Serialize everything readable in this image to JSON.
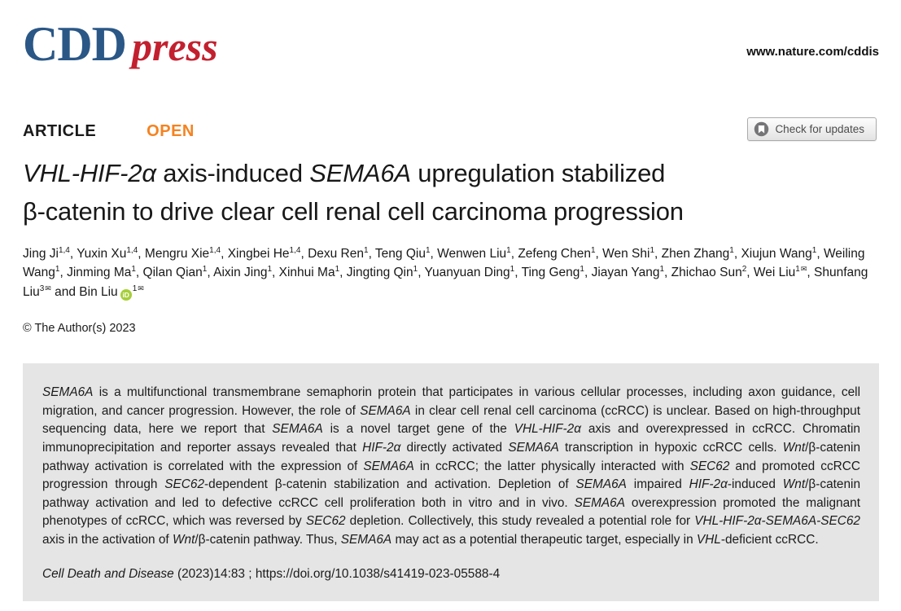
{
  "header": {
    "logo_cdd": "CDD",
    "logo_press": "press",
    "site_url": "www.nature.com/cddis"
  },
  "article": {
    "type_label": "ARTICLE",
    "open_label": "OPEN",
    "check_updates_label": "Check for updates",
    "title_line1": "*VHL-HIF-2α* axis-induced *SEMA6A* upregulation stabilized",
    "title_line2": "β-catenin to drive clear cell renal cell carcinoma progression",
    "copyright": "© The Author(s) 2023"
  },
  "authors": [
    {
      "name": "Jing Ji",
      "sup": "1,4",
      "sep": ", "
    },
    {
      "name": "Yuxin Xu",
      "sup": "1,4",
      "sep": ", "
    },
    {
      "name": "Mengru Xie",
      "sup": "1,4",
      "sep": ", "
    },
    {
      "name": "Xingbei He",
      "sup": "1,4",
      "sep": ", "
    },
    {
      "name": "Dexu Ren",
      "sup": "1",
      "sep": ", "
    },
    {
      "name": "Teng Qiu",
      "sup": "1",
      "sep": ", "
    },
    {
      "name": "Wenwen Liu",
      "sup": "1",
      "sep": ", "
    },
    {
      "name": "Zefeng Chen",
      "sup": "1",
      "sep": ", "
    },
    {
      "name": "Wen Shi",
      "sup": "1",
      "sep": ", "
    },
    {
      "name": "Zhen Zhang",
      "sup": "1",
      "sep": ", "
    },
    {
      "name": "Xiujun Wang",
      "sup": "1",
      "sep": ", "
    },
    {
      "name": "Weiling Wang",
      "sup": "1",
      "sep": ", "
    },
    {
      "name": "Jinming Ma",
      "sup": "1",
      "sep": ", "
    },
    {
      "name": "Qilan Qian",
      "sup": "1",
      "sep": ", "
    },
    {
      "name": "Aixin Jing",
      "sup": "1",
      "sep": ", "
    },
    {
      "name": "Xinhui Ma",
      "sup": "1",
      "sep": ", "
    },
    {
      "name": "Jingting Qin",
      "sup": "1",
      "sep": ", "
    },
    {
      "name": "Yuanyuan Ding",
      "sup": "1",
      "sep": ", "
    },
    {
      "name": "Ting Geng",
      "sup": "1",
      "sep": ", "
    },
    {
      "name": "Jiayan Yang",
      "sup": "1",
      "sep": ", "
    },
    {
      "name": "Zhichao Sun",
      "sup": "2",
      "sep": ", "
    },
    {
      "name": "Wei Liu",
      "sup": "1",
      "mail": true,
      "sep": ", "
    },
    {
      "name": "Shunfang Liu",
      "sup": "3",
      "mail": true,
      "sep": " and "
    },
    {
      "name": "Bin Liu",
      "sup": "1",
      "mail": true,
      "orcid": true,
      "orcid_label": "iD",
      "sep": ""
    }
  ],
  "abstract": {
    "text": "*SEMA6A* is a multifunctional transmembrane semaphorin protein that participates in various cellular processes, including axon guidance, cell migration, and cancer progression. However, the role of *SEMA6A* in clear cell renal cell carcinoma (ccRCC) is unclear. Based on high-throughput sequencing data, here we report that *SEMA6A* is a novel target gene of the *VHL-HIF-2α* axis and overexpressed in ccRCC. Chromatin immunoprecipitation and reporter assays revealed that *HIF-2α* directly activated *SEMA6A* transcription in hypoxic ccRCC cells. *Wnt*/β-catenin pathway activation is correlated with the expression of *SEMA6A* in ccRCC; the latter physically interacted with *SEC62* and promoted ccRCC progression through *SEC62*-dependent β-catenin stabilization and activation. Depletion of *SEMA6A* impaired *HIF-2α*-induced *Wnt*/β-catenin pathway activation and led to defective ccRCC cell proliferation both in vitro and in vivo. *SEMA6A* overexpression promoted the malignant phenotypes of ccRCC, which was reversed by *SEC62* depletion. Collectively, this study revealed a potential role for *VHL-HIF-2α-SEMA6A-SEC62* axis in the activation of *Wnt*/β-catenin pathway. Thus, *SEMA6A* may act as a potential therapeutic target, especially in *VHL*-deficient ccRCC.",
    "citation_journal": "Cell Death and Disease",
    "citation_middle": " (2023)14:83 ; ",
    "citation_doi": "https://doi.org/10.1038/s41419-023-05588-4"
  },
  "colors": {
    "logo_blue": "#2a5786",
    "logo_red": "#c3202f",
    "open_orange": "#f58220",
    "orcid_green": "#a6ce39",
    "abstract_background": "#e6e5e5"
  }
}
